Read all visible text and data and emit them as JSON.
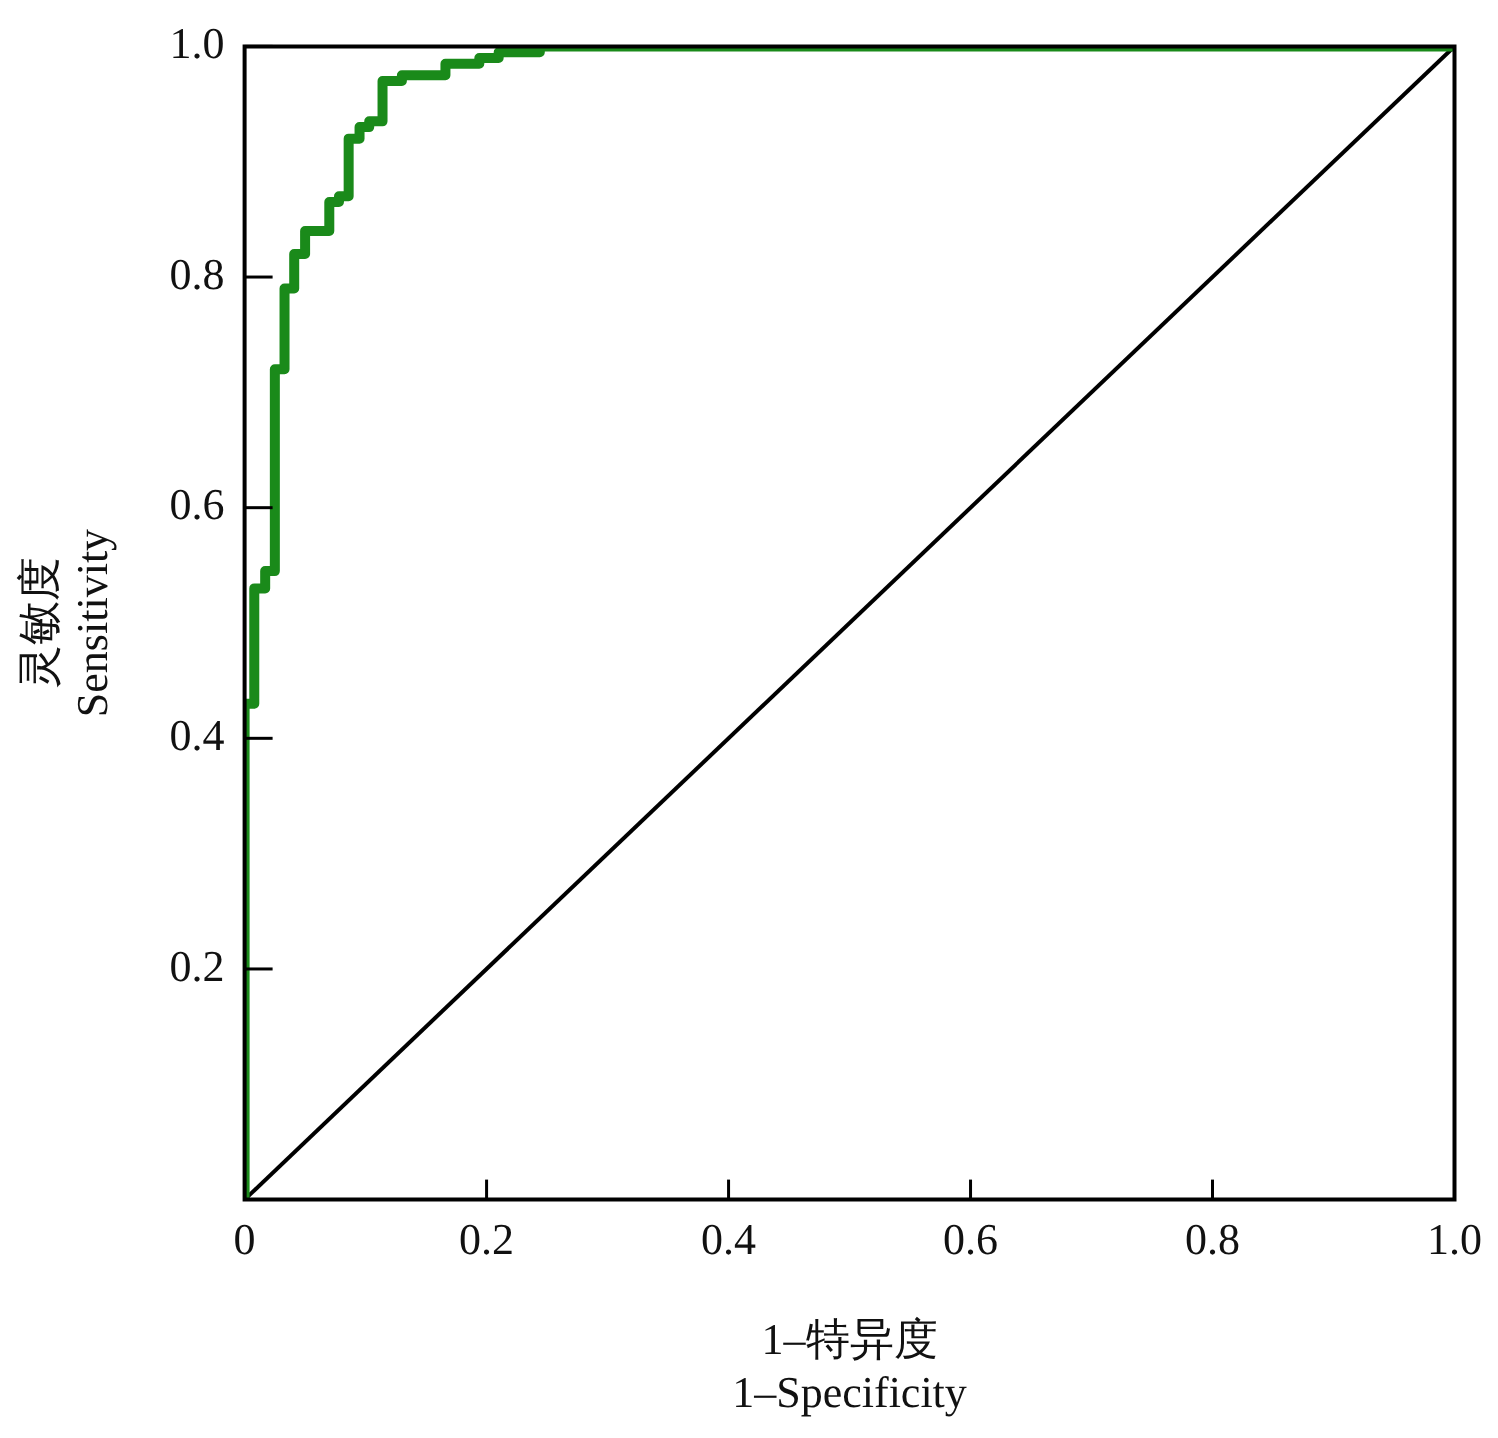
{
  "chart_data": {
    "type": "step",
    "xlabel": "1–特异度\n1–Specificity",
    "ylabel": "灵敏度\nSensitivity",
    "xlim": [
      0,
      1
    ],
    "ylim": [
      0,
      1
    ],
    "xticks": [
      0,
      0.2,
      0.4,
      0.6,
      0.8,
      {
        "value": 1,
        "label": "1.0"
      }
    ],
    "yticks": [
      0.2,
      0.4,
      0.6,
      0.8,
      {
        "value": 1,
        "label": "1.0"
      }
    ],
    "grid": false,
    "legend": false,
    "marker": "none",
    "line_style": "solid",
    "series": [
      {
        "color": "#1a8a1a",
        "x": [
          0,
          0,
          0.008,
          0.017,
          0.025,
          0.033,
          0.041,
          0.05,
          0.07,
          0.078,
          0.086,
          0.095,
          0.103,
          0.114,
          0.13,
          0.166,
          0.194,
          0.21,
          0.244,
          0.4,
          1
        ],
        "values": [
          0,
          0.41,
          0.43,
          0.53,
          0.545,
          0.72,
          0.79,
          0.82,
          0.84,
          0.865,
          0.87,
          0.92,
          0.93,
          0.935,
          0.97,
          0.975,
          0.985,
          0.99,
          0.995,
          1,
          1
        ]
      },
      {
        "type": "line",
        "color": "#000000",
        "x": [
          0,
          1
        ],
        "values": [
          0,
          1
        ]
      }
    ]
  }
}
